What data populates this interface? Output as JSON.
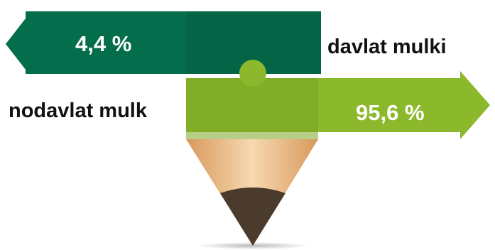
{
  "chart_data": {
    "type": "pie",
    "categories": [
      "davlat mulki",
      "nodavlat mulk"
    ],
    "values": [
      4.4,
      95.6
    ],
    "value_labels": [
      "4,4 %",
      "95,6 %"
    ],
    "title": ""
  },
  "colors": {
    "state": "#046d4c",
    "state_dark": "#035a3e",
    "nonstate": "#8cb82c",
    "nonstate_dark": "#7aa524",
    "wood_light": "#f3cfa3",
    "wood_mid": "#e3ad76",
    "lead": "#4b3b2c",
    "text_dark": "#111111",
    "text_light": "#ffffff"
  }
}
